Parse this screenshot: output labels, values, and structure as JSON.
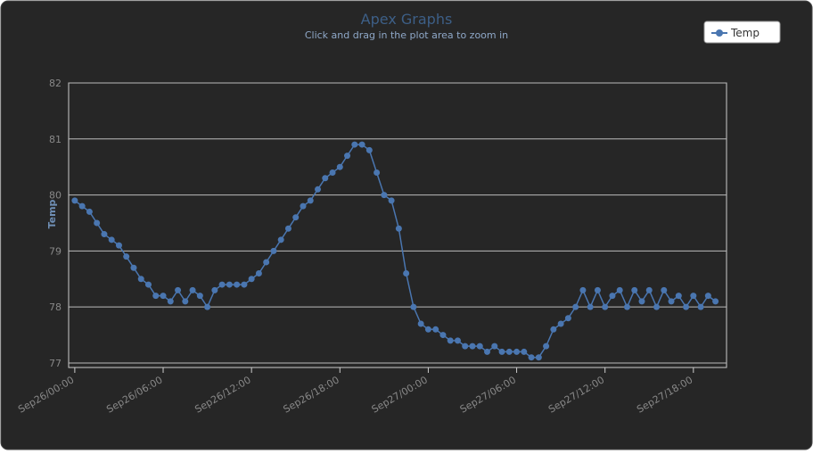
{
  "chart_data": {
    "type": "line",
    "title": "Apex Graphs",
    "subtitle": "Click and drag in the plot area to zoom in",
    "y_label": "Temp",
    "legend": "top-right",
    "grid": true,
    "xlim": [
      "Sep25/23:35",
      "Sep27/20:15"
    ],
    "xticks": [
      "Sep26/00:00",
      "Sep26/06:00",
      "Sep26/12:00",
      "Sep26/18:00",
      "Sep27/00:00",
      "Sep27/06:00",
      "Sep27/12:00",
      "Sep27/18:00"
    ],
    "ylim": [
      76.92,
      82
    ],
    "yticks": [
      77,
      78,
      79,
      80,
      81,
      82
    ],
    "x": [
      "Sep26/00:00",
      "Sep26/00:30",
      "Sep26/01:00",
      "Sep26/01:30",
      "Sep26/02:00",
      "Sep26/02:30",
      "Sep26/03:00",
      "Sep26/03:30",
      "Sep26/04:00",
      "Sep26/04:30",
      "Sep26/05:00",
      "Sep26/05:30",
      "Sep26/06:00",
      "Sep26/06:30",
      "Sep26/07:00",
      "Sep26/07:30",
      "Sep26/08:00",
      "Sep26/08:30",
      "Sep26/09:00",
      "Sep26/09:30",
      "Sep26/10:00",
      "Sep26/10:30",
      "Sep26/11:00",
      "Sep26/11:30",
      "Sep26/12:00",
      "Sep26/12:30",
      "Sep26/13:00",
      "Sep26/13:30",
      "Sep26/14:00",
      "Sep26/14:30",
      "Sep26/15:00",
      "Sep26/15:30",
      "Sep26/16:00",
      "Sep26/16:30",
      "Sep26/17:00",
      "Sep26/17:30",
      "Sep26/18:00",
      "Sep26/18:30",
      "Sep26/19:00",
      "Sep26/19:30",
      "Sep26/20:00",
      "Sep26/20:30",
      "Sep26/21:00",
      "Sep26/21:30",
      "Sep26/22:00",
      "Sep26/22:30",
      "Sep26/23:00",
      "Sep26/23:30",
      "Sep27/00:00",
      "Sep27/00:30",
      "Sep27/01:00",
      "Sep27/01:30",
      "Sep27/02:00",
      "Sep27/02:30",
      "Sep27/03:00",
      "Sep27/03:30",
      "Sep27/04:00",
      "Sep27/04:30",
      "Sep27/05:00",
      "Sep27/05:30",
      "Sep27/06:00",
      "Sep27/06:30",
      "Sep27/07:00",
      "Sep27/07:30",
      "Sep27/08:00",
      "Sep27/08:30",
      "Sep27/09:00",
      "Sep27/09:30",
      "Sep27/10:00",
      "Sep27/10:30",
      "Sep27/11:00",
      "Sep27/11:30",
      "Sep27/12:00",
      "Sep27/12:30",
      "Sep27/13:00",
      "Sep27/13:30",
      "Sep27/14:00",
      "Sep27/14:30",
      "Sep27/15:00",
      "Sep27/15:30",
      "Sep27/16:00",
      "Sep27/16:30",
      "Sep27/17:00",
      "Sep27/17:30",
      "Sep27/18:00",
      "Sep27/18:30",
      "Sep27/19:00",
      "Sep27/19:30"
    ],
    "series": [
      {
        "name": "Temp",
        "color": "#4a76b0",
        "values": [
          79.9,
          79.8,
          79.7,
          79.5,
          79.3,
          79.2,
          79.1,
          78.9,
          78.7,
          78.5,
          78.4,
          78.2,
          78.2,
          78.1,
          78.3,
          78.1,
          78.3,
          78.2,
          78.0,
          78.3,
          78.4,
          78.4,
          78.4,
          78.4,
          78.5,
          78.6,
          78.8,
          79.0,
          79.2,
          79.4,
          79.6,
          79.8,
          79.9,
          80.1,
          80.3,
          80.4,
          80.5,
          80.7,
          80.9,
          80.9,
          80.8,
          80.4,
          80.0,
          79.9,
          79.4,
          78.6,
          78.0,
          77.7,
          77.6,
          77.6,
          77.5,
          77.4,
          77.4,
          77.3,
          77.3,
          77.3,
          77.2,
          77.3,
          77.2,
          77.2,
          77.2,
          77.2,
          77.1,
          77.1,
          77.3,
          77.6,
          77.7,
          77.8,
          78.0,
          78.3,
          78.0,
          78.3,
          78.0,
          78.2,
          78.3,
          78.0,
          78.3,
          78.1,
          78.3,
          78.0,
          78.3,
          78.1,
          78.2,
          78.0,
          78.2,
          78.0,
          78.2,
          78.1
        ]
      }
    ]
  }
}
